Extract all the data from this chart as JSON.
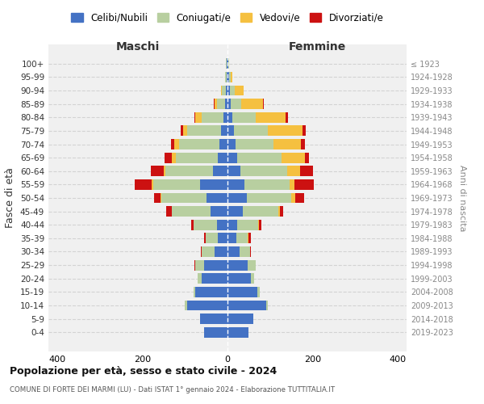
{
  "age_groups": [
    "0-4",
    "5-9",
    "10-14",
    "15-19",
    "20-24",
    "25-29",
    "30-34",
    "35-39",
    "40-44",
    "45-49",
    "50-54",
    "55-59",
    "60-64",
    "65-69",
    "70-74",
    "75-79",
    "80-84",
    "85-89",
    "90-94",
    "95-99",
    "100+"
  ],
  "birth_years": [
    "2019-2023",
    "2014-2018",
    "2009-2013",
    "2004-2008",
    "1999-2003",
    "1994-1998",
    "1989-1993",
    "1984-1988",
    "1979-1983",
    "1974-1978",
    "1969-1973",
    "1964-1968",
    "1959-1963",
    "1954-1958",
    "1949-1953",
    "1944-1948",
    "1939-1943",
    "1934-1938",
    "1929-1933",
    "1924-1928",
    "≤ 1923"
  ],
  "males": {
    "celibi": [
      55,
      65,
      95,
      75,
      60,
      55,
      30,
      22,
      25,
      40,
      50,
      65,
      35,
      22,
      18,
      15,
      10,
      5,
      3,
      2,
      2
    ],
    "coniugati": [
      0,
      0,
      5,
      5,
      10,
      20,
      30,
      30,
      55,
      90,
      105,
      110,
      110,
      100,
      95,
      80,
      50,
      20,
      10,
      4,
      1
    ],
    "vedovi": [
      0,
      0,
      0,
      0,
      0,
      1,
      0,
      0,
      0,
      1,
      2,
      3,
      5,
      8,
      12,
      10,
      15,
      5,
      2,
      0,
      0
    ],
    "divorziati": [
      0,
      0,
      0,
      0,
      0,
      1,
      2,
      3,
      5,
      12,
      15,
      40,
      30,
      18,
      8,
      5,
      3,
      2,
      0,
      0,
      0
    ]
  },
  "females": {
    "nubili": [
      50,
      60,
      90,
      70,
      55,
      48,
      28,
      20,
      22,
      35,
      45,
      40,
      30,
      22,
      18,
      15,
      12,
      8,
      5,
      3,
      2
    ],
    "coniugate": [
      0,
      0,
      5,
      5,
      8,
      18,
      25,
      28,
      50,
      85,
      105,
      105,
      110,
      105,
      90,
      80,
      55,
      25,
      12,
      5,
      1
    ],
    "vedove": [
      0,
      0,
      0,
      0,
      0,
      0,
      0,
      1,
      2,
      3,
      8,
      12,
      30,
      55,
      65,
      80,
      70,
      50,
      20,
      3,
      1
    ],
    "divorziate": [
      0,
      0,
      0,
      0,
      0,
      1,
      2,
      5,
      5,
      8,
      22,
      45,
      30,
      10,
      8,
      8,
      5,
      2,
      1,
      0,
      0
    ]
  },
  "colors": {
    "celibi": "#4472c4",
    "coniugati": "#b8cfa0",
    "vedovi": "#f5c040",
    "divorziati": "#cc1111"
  },
  "title": "Popolazione per età, sesso e stato civile - 2024",
  "subtitle": "COMUNE DI FORTE DEI MARMI (LU) - Dati ISTAT 1° gennaio 2024 - Elaborazione TUTTITALIA.IT",
  "ylabel": "Fasce di età",
  "ylabel_right": "Anni di nascita",
  "xlabel_left": "Maschi",
  "xlabel_right": "Femmine",
  "xlim": 420,
  "bg_color": "#f0f0f0"
}
